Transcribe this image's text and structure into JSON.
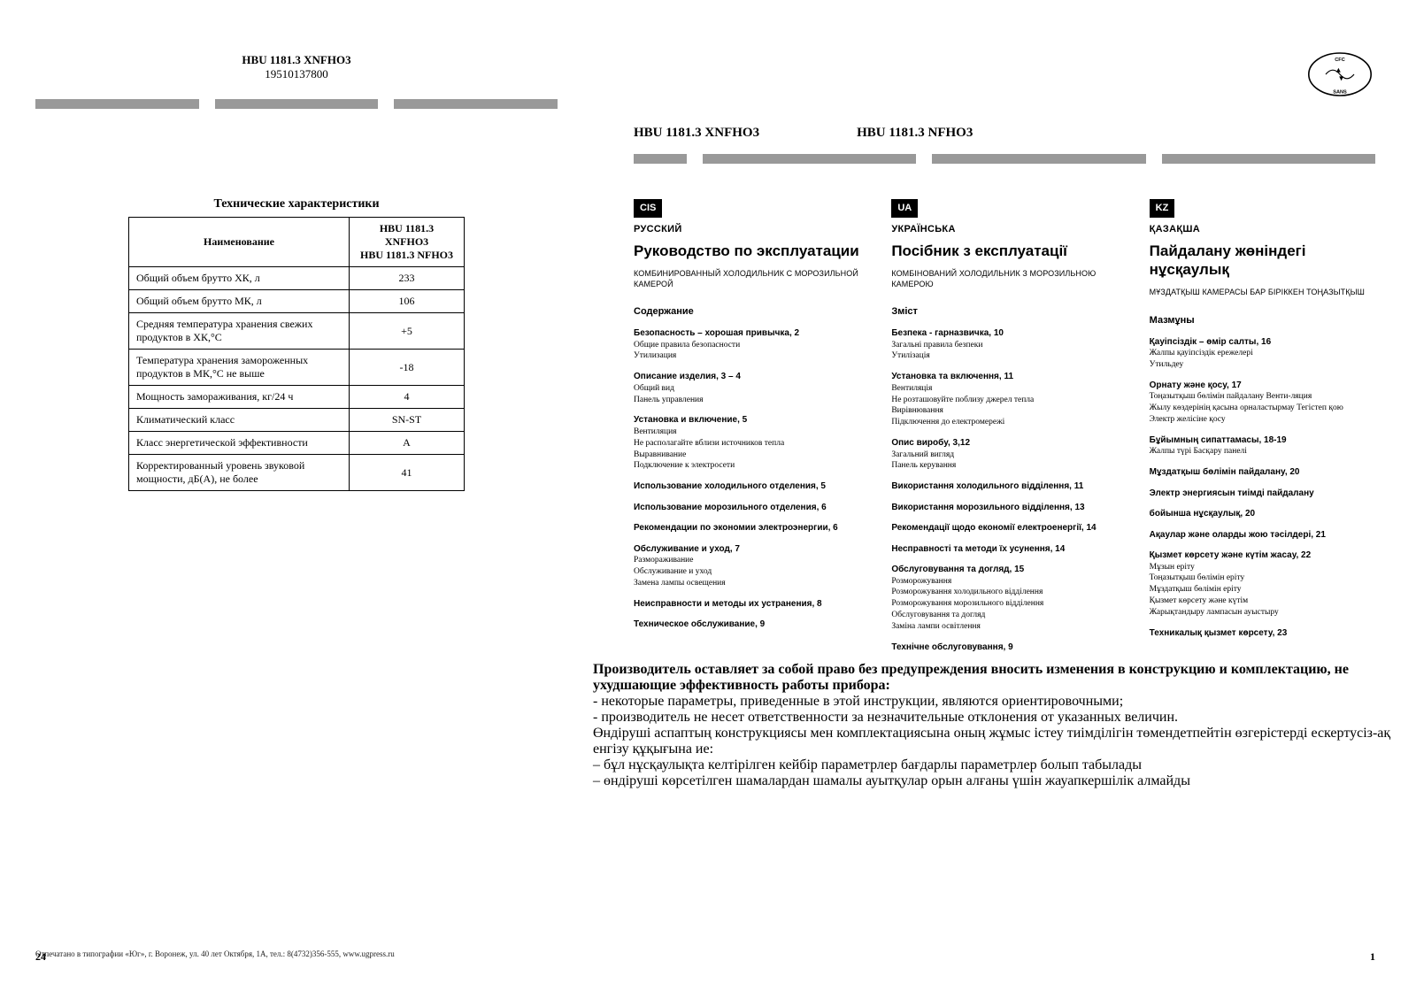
{
  "leftPage": {
    "modelHeader": {
      "line1": "HBU 1181.3 XNFHO3",
      "line2": "19510137800"
    },
    "specTitle": "Технические характеристики",
    "specHeader": {
      "name": "Наименование",
      "models": "HBU 1181.3 XNFHO3\nHBU 1181.3 NFHO3"
    },
    "specs": [
      {
        "n": "Общий объем брутто ХК, л",
        "v": "233"
      },
      {
        "n": "Общий объем брутто МК, л",
        "v": "106"
      },
      {
        "n": "Средняя температура хранения свежих продуктов в ХК,°С",
        "v": "+5"
      },
      {
        "n": "Температура хранения замороженных продуктов в МК,°С не выше",
        "v": "-18"
      },
      {
        "n": "Мощность замораживания, кг/24 ч",
        "v": "4"
      },
      {
        "n": "Климатический класс",
        "v": "SN-ST"
      },
      {
        "n": "Класс энергетической эффективности",
        "v": "A"
      },
      {
        "n": "Корректированный уровень звуковой мощности, дБ(А), не более",
        "v": "41"
      }
    ],
    "footer": "Отпечатано в типографии «Юг», г. Воронеж, ул. 40 лет Октября, 1А, тел.: 8(4732)356-555, www.ugpress.ru",
    "pageNum": "24"
  },
  "rightPage": {
    "models": {
      "a": "HBU 1181.3 XNFHO3",
      "b": "HBU 1181.3 NFHO3"
    },
    "cols": [
      {
        "tag": "CIS",
        "lang": "РУССКИЙ",
        "title": "Руководство по эксплуатации",
        "subtitle": "КОМБИНИРОВАННЫЙ ХОЛОДИЛЬНИК С МОРОЗИЛЬНОЙ КАМЕРОЙ",
        "sectionHead": "Содержание",
        "items": [
          {
            "t": "Безопасность – хорошая привычка, 2",
            "s": [
              "Общие правила безопасности",
              "Утилизация"
            ]
          },
          {
            "t": "Описание изделия, 3 – 4",
            "s": [
              "Общий вид",
              "Панель управления"
            ]
          },
          {
            "t": "Установка и включение, 5",
            "s": [
              "Вентиляция",
              "Не располагайте вблизи источников тепла",
              "Выравнивание",
              "Подключение к электросети"
            ]
          },
          {
            "t": "Использование холодильного отделения, 5",
            "s": []
          },
          {
            "t": "Использование морозильного отделения, 6",
            "s": []
          },
          {
            "t": "Рекомендации по экономии электроэнергии, 6",
            "s": []
          },
          {
            "t": "Обслуживание и уход, 7",
            "s": [
              "Размораживание",
              "Обслуживание и уход",
              "Замена лампы освещения"
            ]
          },
          {
            "t": "Неисправности и методы их устранения, 8",
            "s": []
          },
          {
            "t": "Техническое обслуживание, 9",
            "s": []
          }
        ]
      },
      {
        "tag": "UA",
        "lang": "УКРАЇНСЬКА",
        "title": "Посібник з експлуатації",
        "subtitle": "КОМБІНОВАНИЙ ХОЛОДИЛЬНИК З МОРОЗИЛЬНОЮ КАМЕРОЮ",
        "sectionHead": "Зміст",
        "items": [
          {
            "t": "Безпека - гарназвичка, 10",
            "s": [
              "Загальні правила безпеки",
              "Утилізація"
            ]
          },
          {
            "t": "Установка та включення, 11",
            "s": [
              "Вентиляція",
              "Не розташовуйте поблизу джерел тепла",
              "Вирівнювання",
              "Підключення до електромережі"
            ]
          },
          {
            "t": "Опис виробу, 3,12",
            "s": [
              "Загальний вигляд",
              "Панель керування"
            ]
          },
          {
            "t": "Використання холодильного відділення, 11",
            "s": []
          },
          {
            "t": "Використання морозильного відділення, 13",
            "s": []
          },
          {
            "t": "Рекомендації щодо економії електроенергії, 14",
            "s": []
          },
          {
            "t": "Несправності та методи їх усунення, 14",
            "s": []
          },
          {
            "t": "Обслуговування та догляд, 15",
            "s": [
              "Розморожування",
              "Розморожування холодильного відділення",
              "Розморожування морозильного відділення",
              "Обслуговування та догляд",
              "Заміна лампи освітлення"
            ]
          },
          {
            "t": "Технічне обслуговування, 9",
            "s": []
          }
        ]
      },
      {
        "tag": "KZ",
        "lang": "ҚАЗАҚША",
        "title": "Пайдалану жөніндегі нұсқаулық",
        "subtitle": "МҰЗДАТҚЫШ КАМЕРАСЫ БАР БІРІККЕН ТОҢАЗЫТҚЫШ",
        "sectionHead": "Мазмұны",
        "items": [
          {
            "t": "Қауіпсіздік – өмір салты, 16",
            "s": [
              "Жалпы қауіпсіздік ережелері",
              "Утильдеу"
            ]
          },
          {
            "t": "Орнату және қосу, 17",
            "s": [
              "Тоңазытқыш бөлімін пайдалану Венти-ляция",
              "",
              "Жылу көздерінің қасына орналастырмау Тегістеп қою",
              "",
              "Электр желісіне қосу"
            ]
          },
          {
            "t": "Бұйымның сипаттамасы, 18-19",
            "s": [
              "Жалпы түрі Басқару панелі"
            ]
          },
          {
            "t": "Мұздатқыш бөлімін пайдалану, 20",
            "s": []
          },
          {
            "t": "Электр энергиясын тиімді пайдалану",
            "s": []
          },
          {
            "t": "бойынша нұсқаулық, 20",
            "s": []
          },
          {
            "t": "Ақаулар және оларды жою тәсілдері, 21",
            "s": []
          },
          {
            "t": "Қызмет көрсету және күтім жасау, 22",
            "s": [
              "Мұзын еріту",
              "Тоңазытқыш бөлімін еріту",
              "Мұздатқыш бөлімін еріту",
              "Қызмет көрсету және күтім",
              "Жарықтандыру лампасын ауыстыру"
            ]
          },
          {
            "t": "Техникалық қызмет көрсету, 23",
            "s": []
          }
        ]
      }
    ],
    "disclaimerLeft": "    Производитель оставляет за собой право без предупреждения вносить изменения в конструкцию и комплектацию, не ухудшающие эффективность работы прибора:\n    - некоторые параметры, приведенные в этой инструкции, являются ориентировочными;\n    - производитель не несет ответственности за незначительные отклонения от указанных величин.",
    "disclaimerRight": "    Өндіруші аспаптың конструкциясы мен комплектациясына оның жұмыс істеу тиімділігін төмендетпейтін өзгерістерді ескертусіз-ақ енгізу құқығына ие:\n    – бұл нұсқаулықта келтірілген кейбір параметрлер бағдарлы параметрлер болып табылады\n    – өндіруші көрсетілген шамалардан шамалы ауытқулар орын алғаны үшін жауапкершілік алмайды",
    "pageNum": "1"
  }
}
